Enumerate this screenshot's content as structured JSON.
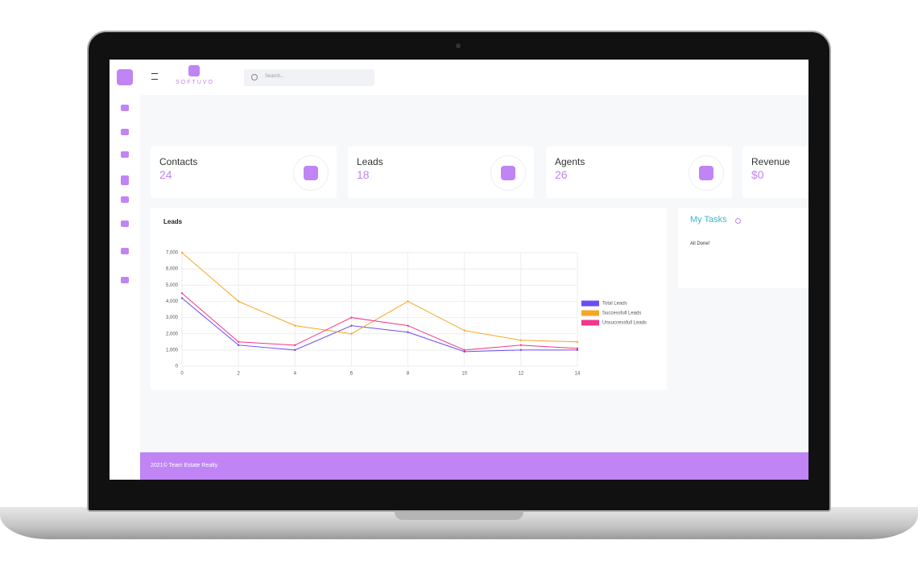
{
  "header": {
    "logo_text": "SOFTUVO",
    "search_placeholder": "Search..."
  },
  "cards": [
    {
      "label": "Contacts",
      "value": 24
    },
    {
      "label": "Leads",
      "value": 18
    },
    {
      "label": "Agents",
      "value": 26
    },
    {
      "label": "Revenue",
      "value": "$0"
    }
  ],
  "tasks": {
    "title": "My Tasks",
    "message": "All Done!"
  },
  "footer": {
    "text": "2021© Team Estate Realty"
  },
  "chart_data": {
    "type": "line",
    "title": "Leads",
    "x": [
      0,
      2,
      4,
      6,
      8,
      10,
      12,
      14
    ],
    "xlim": [
      0,
      14
    ],
    "xticks": [
      0,
      2,
      4,
      6,
      8,
      10,
      12,
      14
    ],
    "ylim": [
      0,
      7000
    ],
    "yticks": [
      0,
      {
        "value": 1000,
        "label": "1,000"
      },
      {
        "value": 2000,
        "label": "2,000"
      },
      {
        "value": 3000,
        "label": "3,000"
      },
      {
        "value": 4000,
        "label": "4,000"
      },
      {
        "value": 5000,
        "label": "5,000"
      },
      {
        "value": 6000,
        "label": "6,000"
      },
      {
        "value": 7000,
        "label": "7,000"
      }
    ],
    "grid": true,
    "legend": "right",
    "series": [
      {
        "name": "Total Leads",
        "color": "#6a4cf5",
        "values": [
          4200,
          1300,
          1000,
          2500,
          2100,
          900,
          1000,
          1000
        ]
      },
      {
        "name": "Successfull Leads",
        "color": "#f5a623",
        "values": [
          7000,
          4000,
          2500,
          2000,
          4000,
          2200,
          1600,
          1500
        ]
      },
      {
        "name": "Unsuccessfull Leads",
        "color": "#f5358a",
        "values": [
          4500,
          1500,
          1300,
          3000,
          2500,
          1000,
          1300,
          1100
        ]
      }
    ]
  }
}
